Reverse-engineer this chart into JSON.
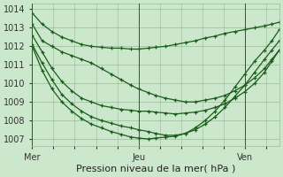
{
  "bg_color": "#cce8cc",
  "grid_color": "#99bb99",
  "line_color": "#1a5c1a",
  "xlabel": "Pression niveau de la mer( hPa )",
  "xlabel_fontsize": 8,
  "yticks": [
    1007,
    1008,
    1009,
    1010,
    1011,
    1012,
    1013,
    1014
  ],
  "xtick_labels": [
    "Mer",
    "Jeu",
    "Ven"
  ],
  "xtick_positions": [
    0,
    0.43,
    0.86
  ],
  "xlim": [
    0,
    1.0
  ],
  "ylim": [
    1006.6,
    1014.3
  ],
  "lines": [
    {
      "pts": [
        [
          0.0,
          1013.8
        ],
        [
          0.04,
          1013.2
        ],
        [
          0.08,
          1012.8
        ],
        [
          0.12,
          1012.5
        ],
        [
          0.16,
          1012.3
        ],
        [
          0.2,
          1012.1
        ],
        [
          0.24,
          1012.0
        ],
        [
          0.28,
          1011.95
        ],
        [
          0.32,
          1011.9
        ],
        [
          0.36,
          1011.9
        ],
        [
          0.4,
          1011.85
        ],
        [
          0.43,
          1011.85
        ],
        [
          0.47,
          1011.9
        ],
        [
          0.5,
          1011.95
        ],
        [
          0.54,
          1012.0
        ],
        [
          0.58,
          1012.1
        ],
        [
          0.62,
          1012.2
        ],
        [
          0.66,
          1012.3
        ],
        [
          0.7,
          1012.45
        ],
        [
          0.74,
          1012.55
        ],
        [
          0.78,
          1012.7
        ],
        [
          0.82,
          1012.8
        ],
        [
          0.86,
          1012.9
        ],
        [
          0.9,
          1013.0
        ],
        [
          0.94,
          1013.1
        ],
        [
          0.97,
          1013.2
        ],
        [
          1.0,
          1013.3
        ]
      ]
    },
    {
      "pts": [
        [
          0.0,
          1013.2
        ],
        [
          0.04,
          1012.3
        ],
        [
          0.08,
          1012.0
        ],
        [
          0.12,
          1011.7
        ],
        [
          0.16,
          1011.5
        ],
        [
          0.2,
          1011.3
        ],
        [
          0.24,
          1011.1
        ],
        [
          0.28,
          1010.8
        ],
        [
          0.32,
          1010.5
        ],
        [
          0.36,
          1010.2
        ],
        [
          0.4,
          1009.9
        ],
        [
          0.43,
          1009.7
        ],
        [
          0.47,
          1009.5
        ],
        [
          0.5,
          1009.35
        ],
        [
          0.54,
          1009.2
        ],
        [
          0.58,
          1009.1
        ],
        [
          0.62,
          1009.0
        ],
        [
          0.66,
          1009.0
        ],
        [
          0.7,
          1009.1
        ],
        [
          0.74,
          1009.2
        ],
        [
          0.78,
          1009.35
        ],
        [
          0.82,
          1009.6
        ],
        [
          0.86,
          1009.9
        ],
        [
          0.9,
          1010.3
        ],
        [
          0.94,
          1010.8
        ],
        [
          0.97,
          1011.3
        ],
        [
          1.0,
          1011.8
        ]
      ]
    },
    {
      "pts": [
        [
          0.0,
          1012.6
        ],
        [
          0.04,
          1011.7
        ],
        [
          0.08,
          1010.8
        ],
        [
          0.12,
          1010.1
        ],
        [
          0.16,
          1009.6
        ],
        [
          0.2,
          1009.2
        ],
        [
          0.24,
          1009.0
        ],
        [
          0.28,
          1008.8
        ],
        [
          0.32,
          1008.7
        ],
        [
          0.36,
          1008.6
        ],
        [
          0.4,
          1008.55
        ],
        [
          0.43,
          1008.5
        ],
        [
          0.47,
          1008.5
        ],
        [
          0.5,
          1008.45
        ],
        [
          0.54,
          1008.4
        ],
        [
          0.58,
          1008.35
        ],
        [
          0.62,
          1008.4
        ],
        [
          0.66,
          1008.45
        ],
        [
          0.7,
          1008.55
        ],
        [
          0.74,
          1008.7
        ],
        [
          0.78,
          1008.9
        ],
        [
          0.82,
          1009.2
        ],
        [
          0.86,
          1009.55
        ],
        [
          0.9,
          1010.0
        ],
        [
          0.94,
          1010.6
        ],
        [
          0.97,
          1011.2
        ],
        [
          1.0,
          1011.8
        ]
      ]
    },
    {
      "pts": [
        [
          0.0,
          1012.1
        ],
        [
          0.04,
          1011.1
        ],
        [
          0.08,
          1010.2
        ],
        [
          0.12,
          1009.4
        ],
        [
          0.16,
          1008.9
        ],
        [
          0.2,
          1008.5
        ],
        [
          0.24,
          1008.2
        ],
        [
          0.28,
          1008.0
        ],
        [
          0.32,
          1007.85
        ],
        [
          0.36,
          1007.7
        ],
        [
          0.4,
          1007.6
        ],
        [
          0.43,
          1007.5
        ],
        [
          0.47,
          1007.4
        ],
        [
          0.5,
          1007.3
        ],
        [
          0.54,
          1007.2
        ],
        [
          0.58,
          1007.2
        ],
        [
          0.62,
          1007.3
        ],
        [
          0.66,
          1007.5
        ],
        [
          0.7,
          1007.8
        ],
        [
          0.74,
          1008.2
        ],
        [
          0.78,
          1008.7
        ],
        [
          0.82,
          1009.3
        ],
        [
          0.86,
          1009.9
        ],
        [
          0.9,
          1010.6
        ],
        [
          0.94,
          1011.3
        ],
        [
          0.97,
          1011.8
        ],
        [
          1.0,
          1012.3
        ]
      ]
    },
    {
      "pts": [
        [
          0.0,
          1012.0
        ],
        [
          0.04,
          1010.7
        ],
        [
          0.08,
          1009.7
        ],
        [
          0.12,
          1009.0
        ],
        [
          0.16,
          1008.5
        ],
        [
          0.2,
          1008.1
        ],
        [
          0.24,
          1007.8
        ],
        [
          0.28,
          1007.6
        ],
        [
          0.32,
          1007.4
        ],
        [
          0.36,
          1007.25
        ],
        [
          0.4,
          1007.1
        ],
        [
          0.43,
          1007.05
        ],
        [
          0.47,
          1007.0
        ],
        [
          0.5,
          1007.05
        ],
        [
          0.54,
          1007.1
        ],
        [
          0.58,
          1007.15
        ],
        [
          0.62,
          1007.3
        ],
        [
          0.66,
          1007.6
        ],
        [
          0.7,
          1008.0
        ],
        [
          0.74,
          1008.5
        ],
        [
          0.78,
          1009.1
        ],
        [
          0.82,
          1009.8
        ],
        [
          0.86,
          1010.5
        ],
        [
          0.9,
          1011.2
        ],
        [
          0.94,
          1011.8
        ],
        [
          0.97,
          1012.3
        ],
        [
          1.0,
          1012.9
        ]
      ]
    }
  ],
  "vline_positions": [
    0.0,
    0.43,
    0.86
  ],
  "vline_color": "#2a5c2a",
  "tick_fontsize": 7,
  "figsize": [
    3.2,
    2.0
  ],
  "dpi": 100
}
